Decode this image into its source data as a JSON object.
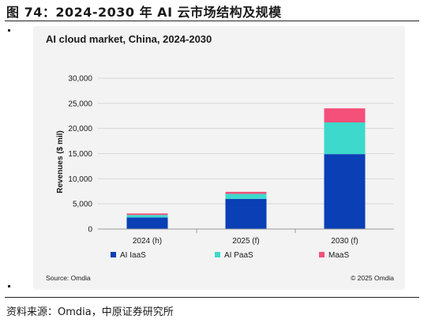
{
  "figure_title": "图 74：2024-2030 年 AI 云市场结构及规模",
  "source_note": "资料来源：Omdia，中原证券研究所",
  "chart_data": {
    "type": "bar",
    "stacked": true,
    "title": "AI cloud market, China, 2024-2030",
    "xlabel": "",
    "ylabel": "Revenues ($ mil)",
    "ylim": [
      0,
      30000
    ],
    "yticks": [
      0,
      5000,
      10000,
      15000,
      20000,
      25000,
      30000
    ],
    "ytick_labels": [
      "0",
      "5,000",
      "10,000",
      "15,000",
      "20,000",
      "25,000",
      "30,000"
    ],
    "categories": [
      "2024 (h)",
      "2025 (f)",
      "2030 (f)"
    ],
    "series": [
      {
        "name": "AI IaaS",
        "color": "#0a3fb5",
        "values": [
          2300,
          6000,
          14900
        ]
      },
      {
        "name": "AI PaaS",
        "color": "#3dd9cc",
        "values": [
          500,
          1000,
          6300
        ]
      },
      {
        "name": "MaaS",
        "color": "#f4507a",
        "values": [
          300,
          400,
          2800
        ]
      }
    ],
    "grid": true,
    "legend_position": "bottom",
    "source": "Source: Omdia",
    "copyright": "© 2025 Omdia"
  }
}
